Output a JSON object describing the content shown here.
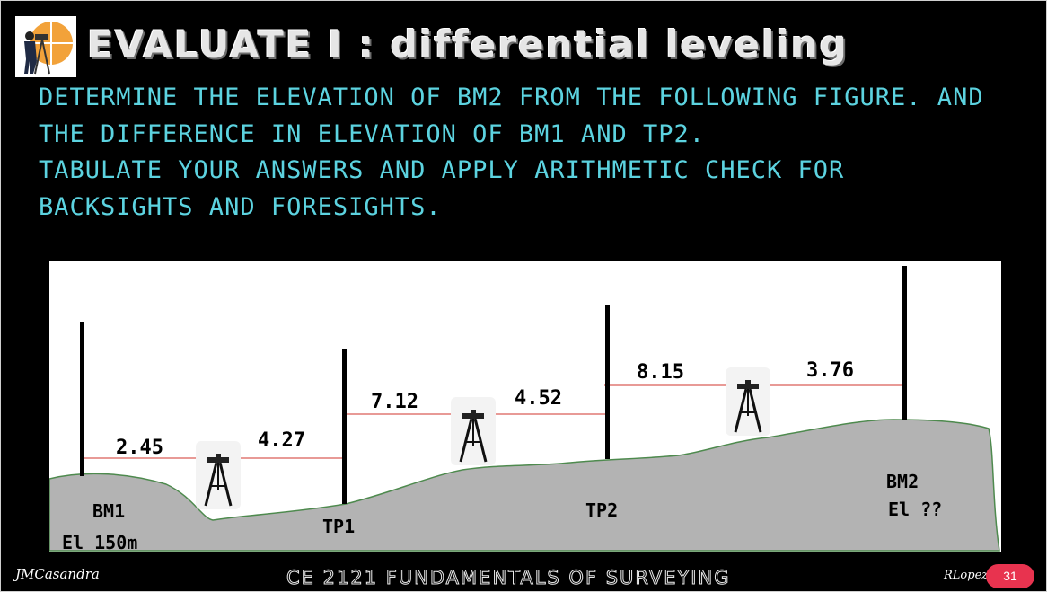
{
  "slide": {
    "title": "EVALUATE I : differential leveling",
    "instructions": [
      "DETERMINE THE ELEVATION OF BM2 FROM THE FOLLOWING FIGURE. AND THE DIFFERENCE IN ELEVATION OF BM1 AND TP2.",
      "TABULATE YOUR ANSWERS AND APPLY ARITHMETIC CHECK FOR BACKSIGHTS AND FORESIGHTS."
    ]
  },
  "figure": {
    "readings": {
      "bs1": "2.45",
      "fs1": "4.27",
      "bs2": "7.12",
      "fs2": "4.52",
      "bs3": "8.15",
      "fs3": "3.76"
    },
    "stations": {
      "bm1_name": "BM1",
      "bm1_elev": "El 150m",
      "tp1": "TP1",
      "tp2": "TP2",
      "bm2_name": "BM2",
      "bm2_elev": "El ??"
    },
    "colors": {
      "ground": "#b3b3b3",
      "ground_outline": "#4e8a4e",
      "line_of_sight": "#d0342c",
      "rod": "#000000"
    }
  },
  "footer": {
    "left_signature": "JMCasandra",
    "course": "CE 2121 FUNDAMENTALS OF SURVEYING",
    "right_signature": "RLopez",
    "page_number": "31"
  }
}
